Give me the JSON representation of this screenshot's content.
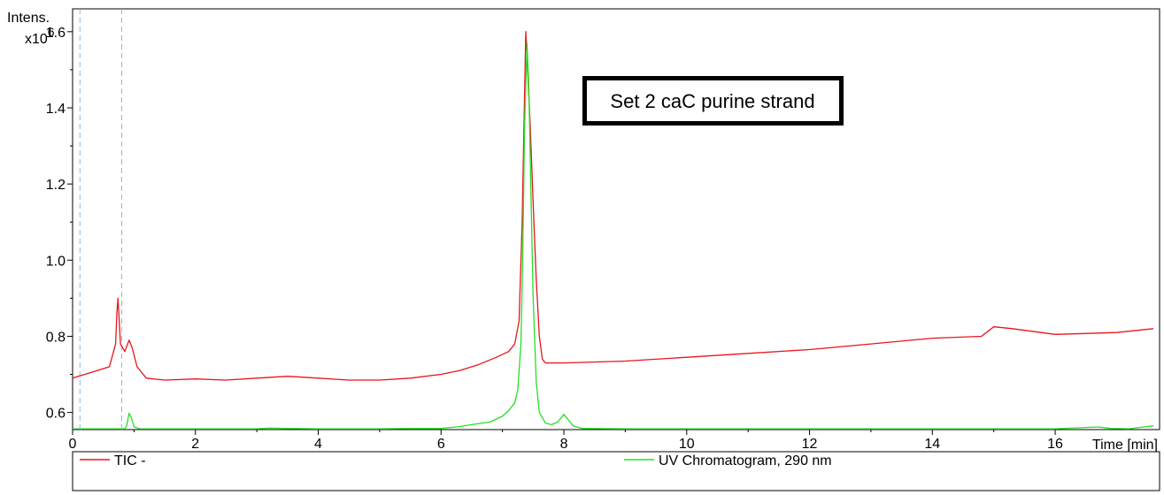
{
  "chart_data": {
    "type": "line",
    "ylabel": "Intens.",
    "ylabel_multiplier": "x10",
    "ylabel_exponent": "6",
    "xlabel": "Time [min]",
    "xlim": [
      0,
      17.7
    ],
    "ylim": [
      0.555,
      1.66
    ],
    "x_ticks": [
      0,
      2,
      4,
      6,
      8,
      10,
      12,
      14,
      16
    ],
    "y_ticks": [
      0.6,
      0.8,
      1.0,
      1.2,
      1.4,
      1.6
    ],
    "y_tick_labels": [
      "0.6",
      "0.8",
      "1.0",
      "1.2",
      "1.4",
      "1.6"
    ],
    "grid": false,
    "marker_lines_x": [
      0.12,
      0.8
    ],
    "annotation": "Set 2 caC purine strand",
    "legend_position": "bottom",
    "series": [
      {
        "name": "TIC -",
        "color": "#e8141c",
        "x": [
          0.0,
          0.3,
          0.6,
          0.7,
          0.72,
          0.74,
          0.78,
          0.85,
          0.92,
          0.97,
          1.05,
          1.2,
          1.5,
          2.0,
          2.5,
          3.0,
          3.5,
          4.0,
          4.5,
          5.0,
          5.5,
          6.0,
          6.3,
          6.6,
          6.9,
          7.1,
          7.2,
          7.27,
          7.32,
          7.35,
          7.38,
          7.41,
          7.45,
          7.5,
          7.55,
          7.6,
          7.65,
          7.7,
          8.0,
          9.0,
          10.0,
          11.0,
          12.0,
          13.0,
          14.0,
          14.8,
          15.0,
          15.3,
          16.0,
          17.0,
          17.6
        ],
        "y": [
          0.69,
          0.705,
          0.72,
          0.78,
          0.86,
          0.9,
          0.78,
          0.76,
          0.79,
          0.77,
          0.72,
          0.69,
          0.685,
          0.688,
          0.685,
          0.69,
          0.695,
          0.69,
          0.685,
          0.685,
          0.69,
          0.7,
          0.71,
          0.725,
          0.745,
          0.76,
          0.78,
          0.84,
          1.1,
          1.35,
          1.6,
          1.5,
          1.36,
          1.15,
          0.95,
          0.8,
          0.74,
          0.73,
          0.73,
          0.735,
          0.745,
          0.755,
          0.765,
          0.78,
          0.795,
          0.8,
          0.825,
          0.82,
          0.805,
          0.81,
          0.82
        ]
      },
      {
        "name": "UV Chromatogram, 290 nm",
        "color": "#25e025",
        "x": [
          0.0,
          0.85,
          0.88,
          0.92,
          0.96,
          1.0,
          1.1,
          2.0,
          3.0,
          3.2,
          3.5,
          4.0,
          5.0,
          5.5,
          6.0,
          6.3,
          6.5,
          6.8,
          7.0,
          7.1,
          7.2,
          7.25,
          7.3,
          7.33,
          7.36,
          7.4,
          7.43,
          7.46,
          7.5,
          7.55,
          7.6,
          7.7,
          7.8,
          7.9,
          8.0,
          8.05,
          8.15,
          8.3,
          9.0,
          10.0,
          12.0,
          14.0,
          16.0,
          16.7,
          16.9,
          17.2,
          17.6
        ],
        "y": [
          0.557,
          0.557,
          0.565,
          0.598,
          0.585,
          0.562,
          0.557,
          0.557,
          0.557,
          0.559,
          0.558,
          0.557,
          0.557,
          0.558,
          0.558,
          0.563,
          0.568,
          0.575,
          0.59,
          0.605,
          0.625,
          0.66,
          0.78,
          1.0,
          1.35,
          1.57,
          1.45,
          1.2,
          0.9,
          0.68,
          0.6,
          0.572,
          0.568,
          0.575,
          0.595,
          0.585,
          0.565,
          0.558,
          0.557,
          0.557,
          0.557,
          0.557,
          0.557,
          0.562,
          0.558,
          0.557,
          0.565
        ]
      }
    ]
  }
}
